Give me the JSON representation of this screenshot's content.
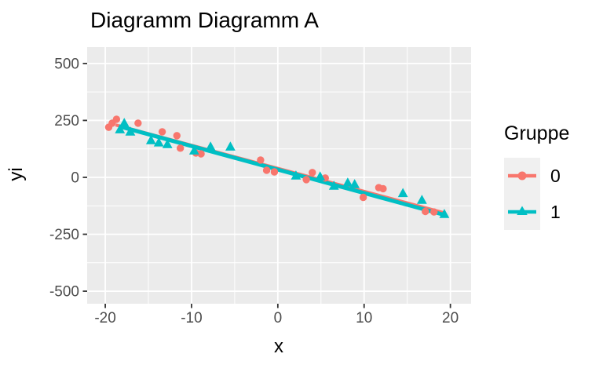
{
  "chart_data": {
    "type": "scatter",
    "title": "Diagramm Diagramm A",
    "xlabel": "x",
    "ylabel": "yi",
    "xlim": [
      -22.1,
      22.4
    ],
    "ylim": [
      -555,
      572
    ],
    "x_ticks": [
      -20,
      -10,
      0,
      10,
      20
    ],
    "y_ticks": [
      -500,
      -250,
      0,
      250,
      500
    ],
    "x_minor_ticks": [
      -15,
      -5,
      5,
      15
    ],
    "y_minor_ticks": [
      -375,
      -125,
      125,
      375
    ],
    "grid": "major+minor",
    "legend_position": "right",
    "panel_bg": "#EBEBEB",
    "grid_color": "#FFFFFF",
    "tick_color": "#333333",
    "tick_label_color": "#4D4D4D",
    "series": [
      {
        "name": "0",
        "marker": "circle",
        "color": "#F8766D",
        "points": [
          [
            -19.6,
            220
          ],
          [
            -19.2,
            238
          ],
          [
            -18.7,
            255
          ],
          [
            -16.2,
            238
          ],
          [
            -13.4,
            200
          ],
          [
            -11.7,
            183
          ],
          [
            -11.3,
            128
          ],
          [
            -9.5,
            107
          ],
          [
            -8.9,
            103
          ],
          [
            -2.0,
            76
          ],
          [
            -1.3,
            31
          ],
          [
            -0.4,
            24
          ],
          [
            3.3,
            -10
          ],
          [
            4.0,
            21
          ],
          [
            5.5,
            -3
          ],
          [
            9.9,
            -88
          ],
          [
            11.7,
            -45
          ],
          [
            12.2,
            -50
          ],
          [
            17.1,
            -150
          ],
          [
            18.1,
            -152
          ]
        ]
      },
      {
        "name": "1",
        "marker": "triangle",
        "color": "#00BFC4",
        "points": [
          [
            -18.3,
            210
          ],
          [
            -17.8,
            238
          ],
          [
            -17.1,
            200
          ],
          [
            -14.7,
            162
          ],
          [
            -13.8,
            152
          ],
          [
            -12.8,
            145
          ],
          [
            -9.7,
            117
          ],
          [
            -7.8,
            134
          ],
          [
            -5.5,
            134
          ],
          [
            2.1,
            7
          ],
          [
            4.9,
            3
          ],
          [
            6.5,
            -38
          ],
          [
            8.1,
            -24
          ],
          [
            8.9,
            -31
          ],
          [
            14.5,
            -70
          ],
          [
            16.7,
            -100
          ],
          [
            19.3,
            -162
          ]
        ]
      }
    ],
    "fit_lines": [
      {
        "series": "0",
        "color": "#F8766D",
        "x1": -18.8,
        "y1": 230,
        "x2": 19.4,
        "y2": -157
      },
      {
        "series": "1",
        "color": "#00BFC4",
        "x1": -18.4,
        "y1": 224,
        "x2": 19.4,
        "y2": -166
      }
    ]
  },
  "legend": {
    "title": "Gruppe",
    "items": [
      {
        "label": "0"
      },
      {
        "label": "1"
      }
    ]
  }
}
